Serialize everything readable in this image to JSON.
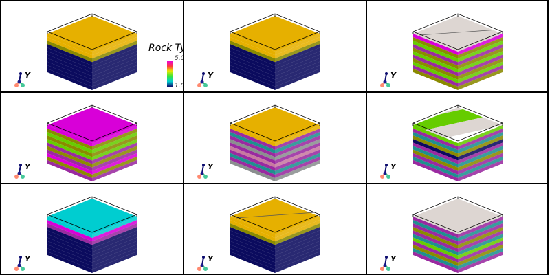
{
  "scalar_bar": {
    "title": "Rock Ty",
    "max_label": "5.0",
    "min_label": "1.0"
  },
  "axes_label": "Y",
  "colors": {
    "navy": "#0b0b5e",
    "gold": "#e6b000",
    "magenta": "#d800d8",
    "cyan": "#00cdd0",
    "lightgray": "#ddd6d2",
    "green": "#66cc00",
    "olive": "#8a8a00",
    "purple": "#9a2aa0"
  },
  "panels": [
    {
      "id": "p1",
      "top": "gold",
      "bands": [
        "gold",
        "gold",
        "olive",
        "navy",
        "navy",
        "navy",
        "navy",
        "navy",
        "navy",
        "navy",
        "navy"
      ],
      "scalarbar": true,
      "diag": false
    },
    {
      "id": "p2",
      "top": "gold",
      "bands": [
        "gold",
        "gold",
        "olive",
        "navy",
        "navy",
        "navy",
        "navy",
        "navy",
        "navy",
        "navy",
        "navy"
      ],
      "scalarbar": false,
      "diag": false
    },
    {
      "id": "p3",
      "top": "lightgray",
      "bands": [
        "magenta",
        "olive",
        "green",
        "purple",
        "olive",
        "green",
        "purple",
        "olive",
        "green",
        "purple",
        "olive"
      ],
      "scalarbar": false,
      "diag": true
    },
    {
      "id": "p4",
      "top": "magenta",
      "bands": [
        "magenta",
        "olive",
        "green",
        "olive",
        "green",
        "purple",
        "olive",
        "purple",
        "magenta",
        "olive",
        "purple"
      ],
      "scalarbar": false,
      "diag": false
    },
    {
      "id": "p5",
      "top": "gold",
      "bands": [
        "gold",
        "purple",
        "teal",
        "purple",
        "gray",
        "purple",
        "pink",
        "purple",
        "teal",
        "purple",
        "gray"
      ],
      "scalarbar": false,
      "diag": false
    },
    {
      "id": "p6",
      "top": "stripes",
      "bands": [
        "green",
        "purple",
        "teal",
        "olive",
        "navy",
        "purple",
        "teal",
        "olive",
        "purple",
        "teal",
        "purple"
      ],
      "scalarbar": false,
      "diag": false
    },
    {
      "id": "p7",
      "top": "cyan",
      "bands": [
        "cyan",
        "magenta",
        "purple",
        "navy",
        "navy",
        "navy",
        "navy",
        "navy",
        "navy",
        "navy",
        "navy"
      ],
      "scalarbar": false,
      "diag": false
    },
    {
      "id": "p8",
      "top": "gold",
      "bands": [
        "gold",
        "gold",
        "olive",
        "navy",
        "navy",
        "navy",
        "navy",
        "navy",
        "navy",
        "navy",
        "navy"
      ],
      "scalarbar": false,
      "diag": true
    },
    {
      "id": "p9",
      "top": "lightgray",
      "bands": [
        "purple",
        "teal",
        "purple",
        "olive",
        "purple",
        "teal",
        "green",
        "purple",
        "olive",
        "teal",
        "purple"
      ],
      "scalarbar": false,
      "diag": false
    }
  ]
}
